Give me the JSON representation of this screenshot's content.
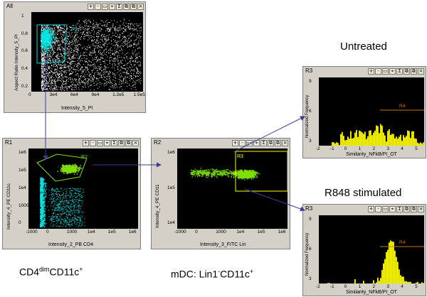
{
  "panel_all": {
    "title": "All",
    "gate": "R1",
    "ylabel": "Aspect Ratio Intensity_5_PI",
    "xlabel": "Intensity_5_PI",
    "yticks": [
      "1",
      "0.8",
      "0.6",
      "0.4",
      "0.2"
    ],
    "xticks": [
      "0",
      "3e4",
      "6e4",
      "9e4",
      "1.2e5",
      "1.5e5"
    ]
  },
  "panel_r1": {
    "title": "R1",
    "gate": "R2",
    "ylabel": "Intensity_4_PE CD11c",
    "xlabel": "Intensity_2_PB CD4",
    "yticks": [
      "1e6",
      "1e5",
      "1e4",
      "1000",
      "0"
    ],
    "xticks": [
      "-1000",
      "0",
      "1000",
      "1e4",
      "1e5",
      "1e6"
    ]
  },
  "panel_r2": {
    "title": "R2",
    "gate": "R3",
    "ylabel": "Intensity_4_PE CD11",
    "xlabel": "Intensity_3_FITC Lin",
    "yticks": [
      "1e6",
      "1e5",
      "1e4"
    ],
    "xticks": [
      "-1000",
      "0",
      "1000",
      "1e4",
      "1e5",
      "1e6"
    ]
  },
  "panel_untreated": {
    "title": "R3",
    "gate": "R4",
    "ylabel": "Normalized Frequency",
    "xlabel": "Similarity_NFkB/PI_OT",
    "yticks": [
      "9",
      "6",
      "3"
    ],
    "xticks": [
      "-2",
      "-1",
      "0",
      "1",
      "2",
      "3",
      "4",
      "5"
    ]
  },
  "panel_r848": {
    "title": "R3",
    "gate": "R4",
    "ylabel": "Normalized Frequency",
    "xlabel": "Similarity_NFkB/PI_OT",
    "yticks": [
      "9",
      "6",
      "3"
    ],
    "xticks": [
      "-2",
      "-1",
      "0",
      "1",
      "2",
      "3",
      "4",
      "5"
    ]
  },
  "toolbar_icons": [
    "zoom-in-icon",
    "zoom-out-icon",
    "region-icon",
    "crosshair-icon",
    "sigma-icon",
    "copy-icon",
    "paste-icon",
    "close-icon"
  ],
  "toolbar_glyphs": [
    "+",
    "-",
    "▭",
    "⌖",
    "Σ",
    "⧉",
    "⧉",
    "×"
  ],
  "labels": {
    "untreated": "Untreated",
    "r848": "R848 stimulated",
    "cd4_base": "CD4",
    "cd4_sup": "dim",
    "cd4_rest": "CD11c",
    "cd4_plus": "+",
    "mdc_base": "mDC: Lin1",
    "mdc_sup": "-",
    "mdc_rest": "CD11c",
    "mdc_plus": "+"
  },
  "colors": {
    "cyan": "#00e5e5",
    "green": "#7fe000",
    "yellow": "#ffff00",
    "gate_orange": "#c8781e",
    "arrow": "#3c3c96"
  }
}
